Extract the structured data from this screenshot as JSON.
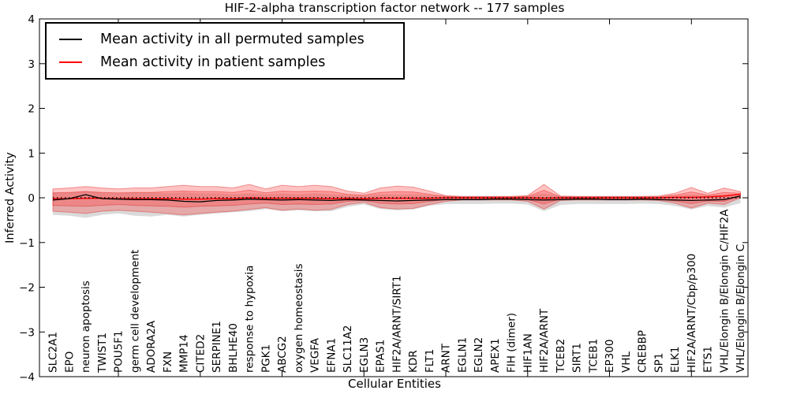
{
  "figure": {
    "title": "HIF-2-alpha transcription factor network -- 177 samples",
    "xlabel": "Cellular Entities",
    "ylabel": "Inferred Activity"
  },
  "legend": {
    "items": [
      {
        "label": "Mean activity in all permuted samples",
        "color": "#000000"
      },
      {
        "label": "Mean activity in patient samples",
        "color": "#ff0000"
      }
    ]
  },
  "chart_data": {
    "type": "line",
    "title": "HIF-2-alpha transcription factor network -- 177 samples",
    "xlabel": "Cellular Entities",
    "ylabel": "Inferred Activity",
    "ylim": [
      -4,
      4
    ],
    "yticks": [
      -4,
      -3,
      -2,
      -1,
      0,
      1,
      2,
      3,
      4
    ],
    "ytick_labels": [
      "−4",
      "−3",
      "−2",
      "−1",
      "0",
      "1",
      "2",
      "3",
      "4"
    ],
    "xtick_positions": [
      4,
      9,
      14,
      19,
      24,
      29,
      34,
      39
    ],
    "grid": false,
    "legend_position": "upper left",
    "categories": [
      "SLC2A1",
      "EPO",
      "neuron apoptosis",
      "TWIST1",
      "POU5F1",
      "germ cell development",
      "ADORA2A",
      "FXN",
      "MMP14",
      "CITED2",
      "SERPINE1",
      "BHLHE40",
      "response to hypoxia",
      "PGK1",
      "ABCG2",
      "oxygen homeostasis",
      "VEGFA",
      "EFNA1",
      "SLC11A2",
      "EGLN3",
      "EPAS1",
      "HIF2A/ARNT/SIRT1",
      "KDR",
      "FLT1",
      "ARNT",
      "EGLN1",
      "EGLN2",
      "APEX1",
      "FIH (dimer)",
      "HIF1AN",
      "HIF2A/ARNT",
      "TCEB2",
      "SIRT1",
      "TCEB1",
      "EP300",
      "VHL",
      "CREBBP",
      "SP1",
      "ELK1",
      "HIF2A/ARNT/Cbp/p300",
      "ETS1",
      "VHL/Elongin B/Elongin C/HIF2A",
      "VHL/Elongin B/Elongin C"
    ],
    "series": [
      {
        "name": "Permuted samples envelope",
        "type": "band",
        "color": "rgba(150,150,150,0.35)",
        "edge": "none",
        "upper": [
          0.12,
          0.12,
          0.15,
          0.12,
          0.1,
          0.12,
          0.12,
          0.1,
          0.12,
          0.1,
          0.1,
          0.08,
          0.1,
          0.08,
          0.1,
          0.08,
          0.1,
          0.08,
          0.06,
          0.05,
          0.08,
          0.08,
          0.08,
          0.06,
          0.04,
          0.03,
          0.03,
          0.03,
          0.03,
          0.04,
          0.1,
          0.04,
          0.03,
          0.03,
          0.03,
          0.03,
          0.03,
          0.03,
          0.05,
          0.08,
          0.05,
          0.08,
          0.06
        ],
        "lower": [
          -0.38,
          -0.4,
          -0.45,
          -0.38,
          -0.35,
          -0.4,
          -0.42,
          -0.38,
          -0.42,
          -0.38,
          -0.35,
          -0.32,
          -0.3,
          -0.25,
          -0.3,
          -0.28,
          -0.3,
          -0.3,
          -0.2,
          -0.15,
          -0.25,
          -0.28,
          -0.26,
          -0.18,
          -0.14,
          -0.14,
          -0.14,
          -0.13,
          -0.13,
          -0.15,
          -0.3,
          -0.16,
          -0.14,
          -0.14,
          -0.14,
          -0.14,
          -0.13,
          -0.14,
          -0.18,
          -0.26,
          -0.18,
          -0.22,
          -0.12
        ]
      },
      {
        "name": "Patient samples envelope (outer)",
        "type": "band",
        "color": "rgba(255,55,55,0.30)",
        "edge": "rgba(220,40,40,0.45)",
        "upper": [
          0.2,
          0.22,
          0.25,
          0.22,
          0.2,
          0.22,
          0.22,
          0.25,
          0.28,
          0.25,
          0.25,
          0.22,
          0.3,
          0.2,
          0.28,
          0.25,
          0.28,
          0.25,
          0.15,
          0.1,
          0.22,
          0.26,
          0.24,
          0.15,
          0.05,
          0.03,
          0.03,
          0.03,
          0.03,
          0.05,
          0.3,
          0.04,
          0.03,
          0.03,
          0.03,
          0.03,
          0.03,
          0.04,
          0.1,
          0.23,
          0.1,
          0.22,
          0.14
        ],
        "lower": [
          -0.3,
          -0.32,
          -0.35,
          -0.3,
          -0.28,
          -0.3,
          -0.32,
          -0.35,
          -0.38,
          -0.35,
          -0.32,
          -0.3,
          -0.26,
          -0.22,
          -0.28,
          -0.25,
          -0.28,
          -0.26,
          -0.15,
          -0.1,
          -0.22,
          -0.25,
          -0.24,
          -0.15,
          -0.08,
          -0.05,
          -0.05,
          -0.05,
          -0.05,
          -0.08,
          -0.25,
          -0.06,
          -0.05,
          -0.05,
          -0.05,
          -0.05,
          -0.05,
          -0.06,
          -0.12,
          -0.23,
          -0.12,
          -0.15,
          0.0
        ]
      },
      {
        "name": "Patient samples envelope (inner)",
        "type": "band",
        "color": "rgba(255,55,55,0.30)",
        "edge": "rgba(220,40,40,0.45)",
        "upper": [
          0.11,
          0.12,
          0.14,
          0.12,
          0.11,
          0.12,
          0.12,
          0.14,
          0.15,
          0.14,
          0.14,
          0.12,
          0.17,
          0.11,
          0.15,
          0.14,
          0.15,
          0.14,
          0.08,
          0.06,
          0.12,
          0.14,
          0.13,
          0.08,
          0.03,
          0.02,
          0.02,
          0.02,
          0.02,
          0.03,
          0.17,
          0.02,
          0.02,
          0.02,
          0.02,
          0.02,
          0.02,
          0.02,
          0.06,
          0.13,
          0.06,
          0.12,
          0.1
        ],
        "lower": [
          -0.17,
          -0.18,
          -0.19,
          -0.17,
          -0.15,
          -0.17,
          -0.18,
          -0.19,
          -0.21,
          -0.19,
          -0.18,
          -0.17,
          -0.14,
          -0.12,
          -0.15,
          -0.14,
          -0.15,
          -0.14,
          -0.08,
          -0.06,
          -0.12,
          -0.14,
          -0.13,
          -0.08,
          -0.04,
          -0.03,
          -0.03,
          -0.03,
          -0.03,
          -0.04,
          -0.14,
          -0.03,
          -0.03,
          -0.03,
          -0.03,
          -0.03,
          -0.03,
          -0.03,
          -0.07,
          -0.13,
          -0.07,
          -0.08,
          0.02
        ]
      },
      {
        "name": "Mean activity in patient samples",
        "type": "line",
        "color": "#ff0000",
        "width": 1.5,
        "values": [
          -0.02,
          -0.02,
          -0.01,
          -0.01,
          -0.02,
          -0.02,
          -0.02,
          -0.02,
          -0.03,
          -0.03,
          -0.02,
          -0.02,
          0.0,
          -0.01,
          -0.01,
          -0.01,
          -0.01,
          -0.02,
          -0.01,
          -0.02,
          -0.01,
          -0.01,
          -0.01,
          -0.01,
          0.0,
          0.0,
          0.0,
          0.0,
          0.0,
          0.0,
          -0.01,
          0.0,
          0.0,
          0.0,
          0.0,
          0.0,
          0.0,
          0.0,
          0.01,
          0.01,
          0.02,
          0.04,
          0.08
        ]
      },
      {
        "name": "Mean activity in all permuted samples",
        "type": "line",
        "color": "#000000",
        "width": 1.3,
        "values": [
          -0.05,
          -0.02,
          0.07,
          -0.02,
          -0.03,
          -0.04,
          -0.04,
          -0.05,
          -0.08,
          -0.09,
          -0.06,
          -0.05,
          -0.03,
          -0.04,
          -0.05,
          -0.04,
          -0.05,
          -0.06,
          -0.04,
          -0.05,
          -0.06,
          -0.07,
          -0.06,
          -0.05,
          -0.04,
          -0.04,
          -0.04,
          -0.03,
          -0.03,
          -0.04,
          -0.05,
          -0.04,
          -0.03,
          -0.03,
          -0.04,
          -0.04,
          -0.03,
          -0.04,
          -0.05,
          -0.06,
          -0.05,
          -0.04,
          0.04
        ]
      }
    ],
    "zero_line": {
      "y": 0,
      "style": "dotted",
      "color": "#000000"
    }
  }
}
